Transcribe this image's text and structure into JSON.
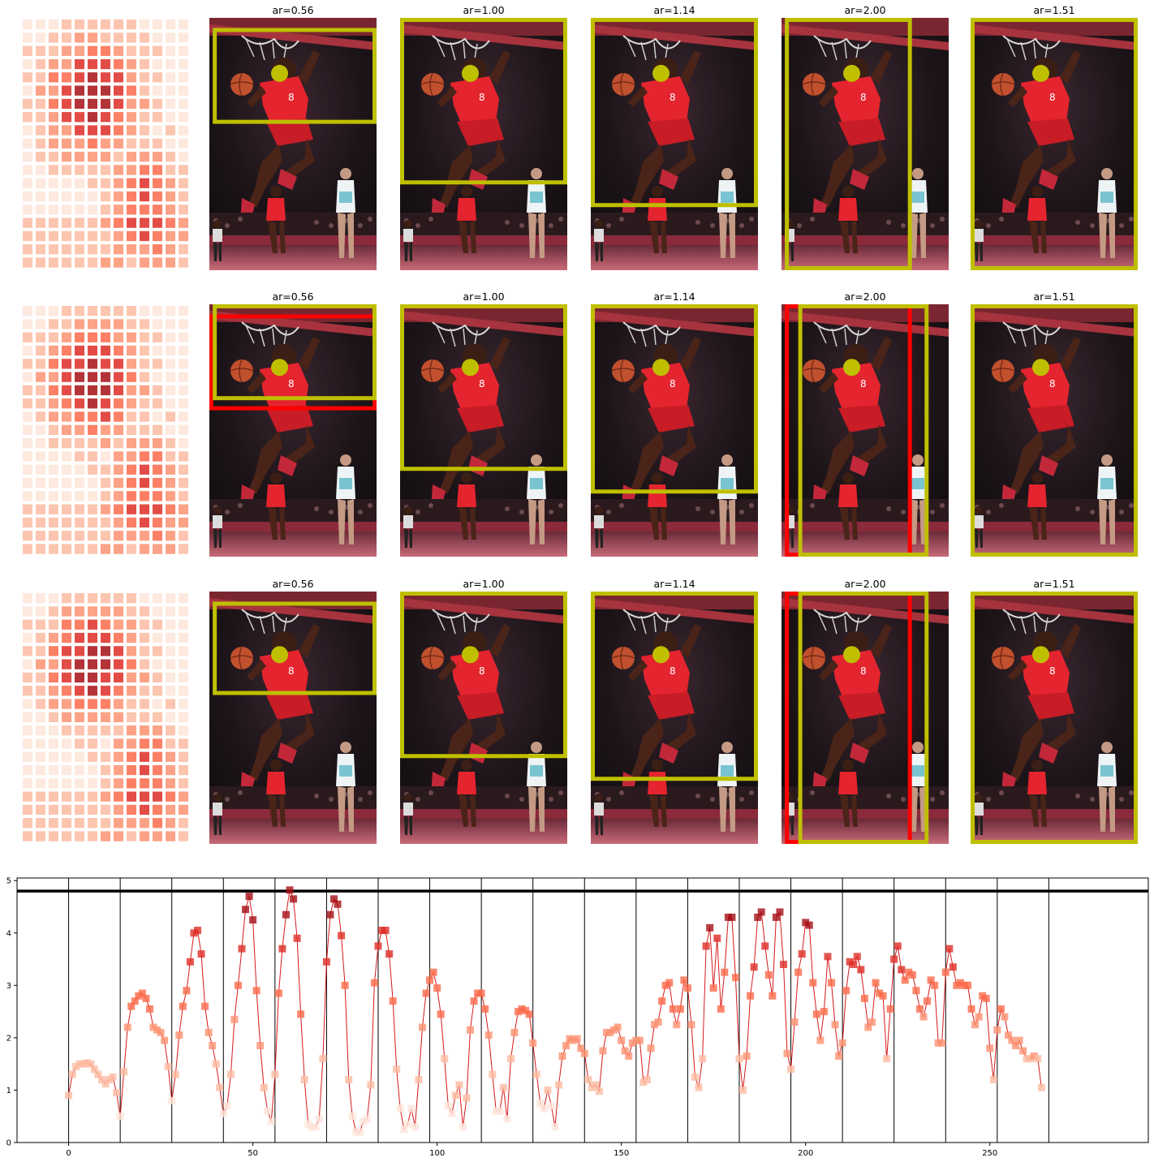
{
  "figure": {
    "rows": 3,
    "panel_titles": [
      "ar=0.56",
      "ar=1.00",
      "ar=1.14",
      "ar=2.00",
      "ar=1.51"
    ],
    "colors": {
      "crop_box": "#bfbf00",
      "alt_box": "#ff0000",
      "focus_dot": "#bfbf00",
      "heat_line": "#d7191c",
      "threshold": "#000000"
    }
  },
  "chart_data": {
    "type": "scatter",
    "title": "",
    "xlabel": "",
    "ylabel": "",
    "xlim": [
      -14,
      293
    ],
    "ylim": [
      0,
      5.05
    ],
    "x_ticks": [
      0,
      50,
      100,
      150,
      200,
      250
    ],
    "y_ticks": [
      0,
      1,
      2,
      3,
      4,
      5
    ],
    "threshold_y": 4.8,
    "vlines_x": [
      0,
      14,
      28,
      42,
      56,
      70,
      84,
      98,
      112,
      126,
      140,
      154,
      168,
      182,
      196,
      210,
      224,
      238,
      252,
      266
    ],
    "grid": false,
    "legend": "none",
    "series": [
      {
        "name": "",
        "x_start": 0,
        "x_step": 1,
        "values": [
          0.9,
          1.3,
          1.45,
          1.5,
          1.5,
          1.52,
          1.5,
          1.4,
          1.3,
          1.2,
          1.12,
          1.2,
          1.25,
          0.95,
          0.5,
          1.35,
          2.2,
          2.6,
          2.7,
          2.8,
          2.85,
          2.75,
          2.55,
          2.2,
          2.15,
          2.1,
          1.95,
          1.45,
          0.8,
          1.3,
          2.05,
          2.6,
          2.9,
          3.45,
          4.0,
          4.05,
          3.6,
          2.6,
          2.1,
          1.85,
          1.5,
          1.05,
          0.55,
          0.7,
          1.3,
          2.35,
          3.0,
          3.7,
          4.45,
          4.7,
          4.25,
          2.9,
          1.85,
          1.05,
          0.6,
          0.4,
          1.3,
          2.85,
          3.7,
          4.35,
          4.82,
          4.65,
          3.9,
          2.45,
          1.2,
          0.35,
          0.3,
          0.3,
          0.45,
          1.6,
          3.45,
          4.35,
          4.65,
          4.55,
          3.95,
          3.0,
          1.2,
          0.5,
          0.2,
          0.2,
          0.4,
          0.45,
          1.1,
          3.05,
          3.75,
          4.05,
          4.05,
          3.6,
          2.7,
          1.4,
          0.65,
          0.25,
          0.35,
          0.65,
          0.3,
          1.2,
          2.2,
          2.85,
          3.1,
          3.25,
          2.95,
          2.45,
          1.6,
          0.7,
          0.55,
          0.9,
          1.1,
          0.3,
          0.85,
          2.15,
          2.7,
          2.85,
          2.85,
          2.55,
          2.05,
          1.3,
          0.6,
          0.6,
          1.05,
          0.45,
          1.6,
          2.1,
          2.5,
          2.55,
          2.52,
          2.45,
          1.9,
          1.3,
          0.75,
          0.65,
          1.0,
          0.7,
          0.3,
          1.1,
          1.65,
          1.85,
          1.98,
          1.95,
          1.98,
          1.8,
          1.7,
          1.2,
          1.05,
          1.1,
          0.98,
          1.75,
          2.1,
          2.1,
          2.15,
          2.2,
          1.95,
          1.75,
          1.65,
          1.9,
          1.95,
          1.95,
          1.15,
          1.2,
          1.8,
          2.25,
          2.3,
          2.7,
          3.0,
          3.05,
          2.55,
          2.25,
          2.55,
          3.1,
          2.95,
          2.25,
          1.25,
          1.05,
          1.6,
          3.75,
          4.1,
          2.95,
          3.9,
          2.55,
          3.25,
          4.3,
          4.3,
          3.15,
          1.6,
          1.0,
          1.65,
          2.8,
          3.35,
          4.3,
          4.4,
          3.75,
          3.2,
          2.8,
          4.3,
          4.4,
          3.4,
          1.7,
          1.4,
          2.3,
          3.25,
          3.6,
          4.2,
          4.15,
          3.05,
          2.45,
          1.95,
          2.5,
          3.55,
          3.05,
          2.25,
          1.65,
          1.9,
          2.9,
          3.45,
          3.4,
          3.55,
          3.3,
          2.75,
          2.2,
          2.3,
          3.05,
          2.85,
          2.8,
          1.6,
          2.55,
          3.5,
          3.75,
          3.3,
          3.1,
          3.25,
          3.2,
          2.9,
          2.55,
          2.4,
          2.7,
          3.1,
          3.0,
          1.9,
          1.9,
          3.25,
          3.7,
          3.35,
          3.0,
          3.05,
          3.0,
          3.0,
          2.55,
          2.25,
          2.4,
          2.8,
          2.75,
          1.8,
          1.2,
          2.15,
          2.55,
          2.4,
          2.05,
          1.95,
          1.85,
          1.95,
          1.75,
          1.6,
          1.6,
          1.65,
          1.6,
          1.05
        ]
      }
    ]
  }
}
